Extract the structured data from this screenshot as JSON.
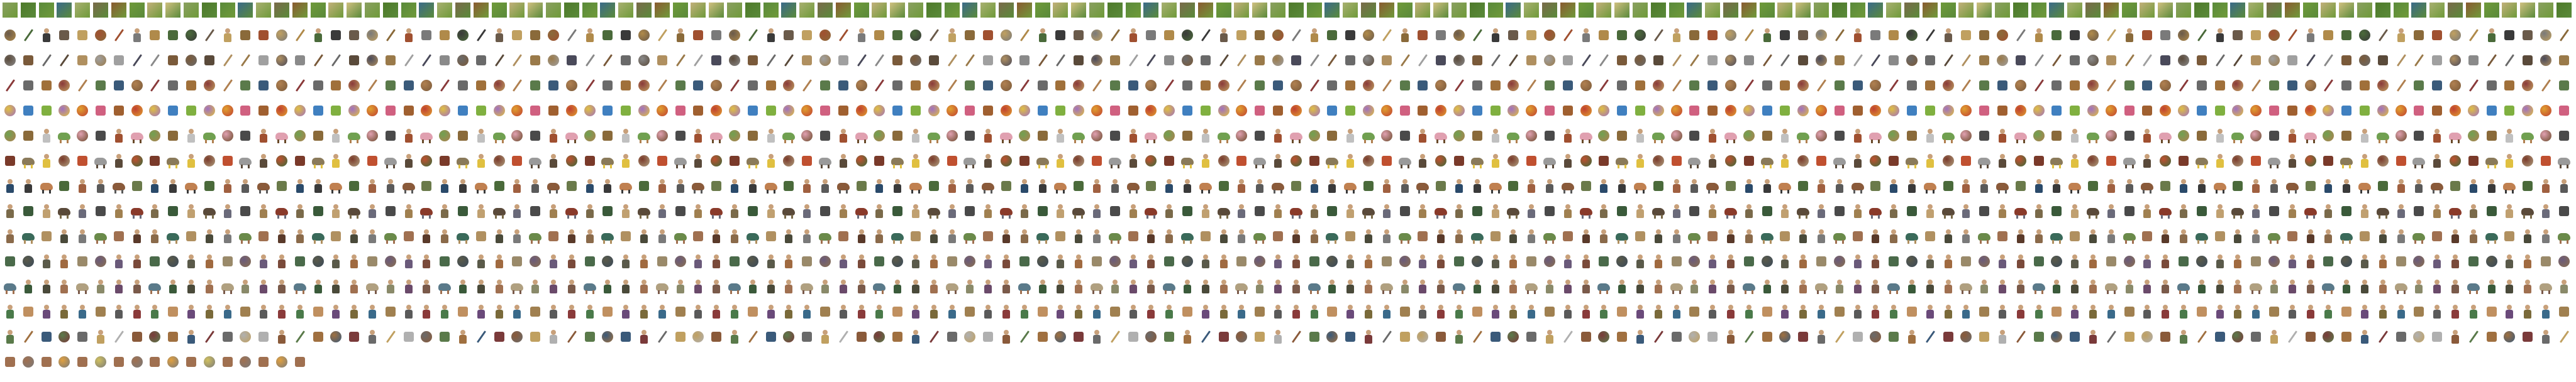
{
  "sheet": {
    "background": "#ffffff",
    "rows": [
      {
        "kind_cycle": [
          "square"
        ],
        "palette": [
          "#8aa060",
          "#6f9a3a",
          "#a8b070",
          "#4e7a2a",
          "#c2b07a",
          "#7a6a4a",
          "#5a8a3a",
          "#d0c080",
          "#8a5a30",
          "#3a6a8a"
        ],
        "count": 142
      },
      {
        "kind_cycle": [
          "item",
          "round",
          "weapon",
          "figure",
          "item"
        ],
        "palette": [
          "#8a6a3a",
          "#b08a4a",
          "#6a5a4a",
          "#a05030",
          "#4a6a3a",
          "#c0a060",
          "#7a7a7a",
          "#3a3a3a"
        ],
        "count": 142
      },
      {
        "kind_cycle": [
          "weapon",
          "item",
          "round",
          "item",
          "weapon"
        ],
        "palette": [
          "#6a6a6a",
          "#9a7a4a",
          "#8a8a8a",
          "#5a4a3a",
          "#a0a0a0",
          "#7a5a3a",
          "#b09060",
          "#4a4a5a"
        ],
        "count": 142
      },
      {
        "kind_cycle": [
          "item",
          "item",
          "round",
          "weapon"
        ],
        "palette": [
          "#7a5a3a",
          "#a0703a",
          "#5a7a4a",
          "#8a3a3a",
          "#c0a060",
          "#3a5a7a",
          "#6a6a6a",
          "#b08050"
        ],
        "count": 142
      },
      {
        "kind_cycle": [
          "round",
          "item",
          "item",
          "round"
        ],
        "palette": [
          "#c04030",
          "#e0a030",
          "#80b040",
          "#d06080",
          "#a070c0",
          "#e0c040",
          "#a06030",
          "#4080c0"
        ],
        "count": 142
      },
      {
        "kind_cycle": [
          "beast",
          "round",
          "item",
          "figure"
        ],
        "palette": [
          "#8a6a3a",
          "#6a4a2a",
          "#e0a0b0",
          "#c0c0c0",
          "#4a4a4a",
          "#b08050",
          "#70a050",
          "#a05030"
        ],
        "count": 142
      },
      {
        "kind_cycle": [
          "figure",
          "round",
          "item",
          "beast"
        ],
        "palette": [
          "#5a4a3a",
          "#8a7a5a",
          "#c05030",
          "#3a6a3a",
          "#e0c040",
          "#9a9a9a",
          "#7a3a2a",
          "#b0a080"
        ],
        "count": 142
      },
      {
        "kind_cycle": [
          "figure",
          "beast",
          "item",
          "figure"
        ],
        "palette": [
          "#4a6a3a",
          "#8a5a3a",
          "#3a3a3a",
          "#a06040",
          "#6a7a4a",
          "#c08050",
          "#5a5a5a",
          "#2a4a6a"
        ],
        "count": 142
      },
      {
        "kind_cycle": [
          "figure",
          "item",
          "figure",
          "beast"
        ],
        "palette": [
          "#7a6a4a",
          "#5a4a3a",
          "#a08050",
          "#3a5a3a",
          "#6a6a7a",
          "#8a3a2a",
          "#c0a070",
          "#4a4a4a"
        ],
        "count": 142
      },
      {
        "kind_cycle": [
          "figure",
          "figure",
          "beast",
          "item"
        ],
        "palette": [
          "#6a8a4a",
          "#8a6a4a",
          "#4a4a3a",
          "#a07050",
          "#3a6a5a",
          "#7a7a7a",
          "#5a3a2a",
          "#b09060"
        ],
        "count": 142
      },
      {
        "kind_cycle": [
          "figure",
          "figure",
          "item",
          "round"
        ],
        "palette": [
          "#5a5a4a",
          "#8a7050",
          "#4a6a4a",
          "#a06a40",
          "#6a5a7a",
          "#3a4a5a",
          "#9a8a6a",
          "#7a4a3a"
        ],
        "count": 142
      },
      {
        "kind_cycle": [
          "figure",
          "figure",
          "figure",
          "beast"
        ],
        "palette": [
          "#7a5a4a",
          "#4a4a3a",
          "#8a8a6a",
          "#5a7a8a",
          "#a07050",
          "#6a4a6a",
          "#3a5a3a",
          "#b0a080"
        ],
        "count": 142
      },
      {
        "kind_cycle": [
          "figure",
          "item",
          "figure",
          "figure"
        ],
        "palette": [
          "#3a6a8a",
          "#8a3a3a",
          "#6a4a7a",
          "#a08050",
          "#4a7a4a",
          "#7a6a3a",
          "#5a5a5a",
          "#c09060"
        ],
        "count": 142
      },
      {
        "kind_cycle": [
          "item",
          "round",
          "item",
          "figure",
          "weapon"
        ],
        "palette": [
          "#a07040",
          "#6a6a6a",
          "#8a5a3a",
          "#3a5a7a",
          "#c0a060",
          "#5a7a4a",
          "#7a3a3a",
          "#b0b0b0"
        ],
        "count": 142
      },
      {
        "kind_cycle": [
          "item",
          "round"
        ],
        "palette": [
          "#e0a040",
          "#8ab0e0",
          "#a07050",
          "#60a0d0",
          "#d0c060",
          "#7a7a7a"
        ],
        "count": 17
      }
    ]
  }
}
